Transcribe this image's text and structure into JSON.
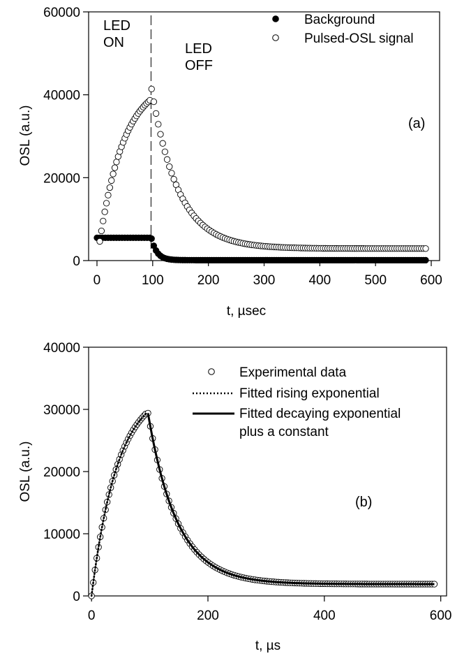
{
  "chart_data": [
    {
      "type": "scatter",
      "panel_label": "(a)",
      "xlabel": "t, µsec",
      "ylabel": "OSL (a.u.)",
      "xlim": [
        -15,
        615
      ],
      "ylim": [
        0,
        60000
      ],
      "xticks": [
        0,
        100,
        200,
        300,
        400,
        500,
        600
      ],
      "yticks": [
        0,
        20000,
        40000,
        60000
      ],
      "annotations": {
        "led_on": [
          "LED",
          "ON"
        ],
        "led_off": [
          "LED",
          "OFF"
        ]
      },
      "vline_x": 97,
      "series": [
        {
          "name": "Background",
          "marker": "filled-circle",
          "rise": {
            "start": 0,
            "end": 95,
            "step": 5,
            "level": 5500
          },
          "decay": {
            "start": 98,
            "end": 590,
            "step": 4,
            "a": 5200,
            "tau": 10,
            "c": 100
          }
        },
        {
          "name": "Pulsed-OSL signal",
          "marker": "open-circle",
          "rise": {
            "start": 5,
            "end": 97,
            "step": 3,
            "amp": 44000,
            "tau": 45,
            "c": 0
          },
          "decay": {
            "start": 98,
            "end": 590,
            "step": 4,
            "a": 38500,
            "tau": 48,
            "c": 2900
          }
        }
      ]
    },
    {
      "type": "scatter",
      "panel_label": "(b)",
      "xlabel": "t, µs",
      "ylabel": "OSL (a.u.)",
      "xlim": [
        -5,
        610
      ],
      "ylim": [
        0,
        40000
      ],
      "xticks": [
        0,
        200,
        400,
        600
      ],
      "yticks": [
        0,
        10000,
        20000,
        30000,
        40000
      ],
      "series": [
        {
          "name": "Experimental data",
          "marker": "open-circle",
          "rise": {
            "start": 0,
            "end": 95,
            "step": 3,
            "amp": 33500,
            "tau": 45,
            "c": 0
          },
          "decay": {
            "start": 97,
            "end": 590,
            "step": 4,
            "a": 27500,
            "tau": 50,
            "c": 1900
          }
        },
        {
          "name": "Fitted rising exponential",
          "style": "dotted",
          "rise": {
            "start": 0,
            "end": 97,
            "step": 2,
            "amp": 33500,
            "tau": 45,
            "c": 0
          }
        },
        {
          "name": "Fitted decaying exponential",
          "name_line2": "plus a constant",
          "style": "solid",
          "decay": {
            "start": 97,
            "end": 590,
            "step": 2,
            "a": 27500,
            "tau": 50,
            "c": 1900
          }
        }
      ]
    }
  ]
}
